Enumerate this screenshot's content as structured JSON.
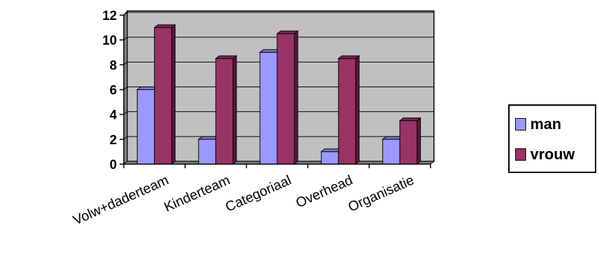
{
  "chart_data": {
    "type": "bar",
    "categories": [
      "Volw+daderteam",
      "Kinderteam",
      "Categoriaal",
      "Overhead",
      "Organisatie"
    ],
    "series": [
      {
        "name": "man",
        "values": [
          6,
          2,
          9,
          1,
          2
        ],
        "color": "#9999FF"
      },
      {
        "name": "vrouw",
        "values": [
          11,
          8.5,
          10.5,
          8.5,
          3.5
        ],
        "color": "#993366"
      }
    ],
    "yticks": [
      "0",
      "2",
      "4",
      "6",
      "8",
      "10",
      "12"
    ],
    "ylim": [
      0,
      12
    ],
    "grid": true,
    "legend_position": "right",
    "wall_color": "#C0C0C0",
    "style": "3d-clustered-column"
  }
}
